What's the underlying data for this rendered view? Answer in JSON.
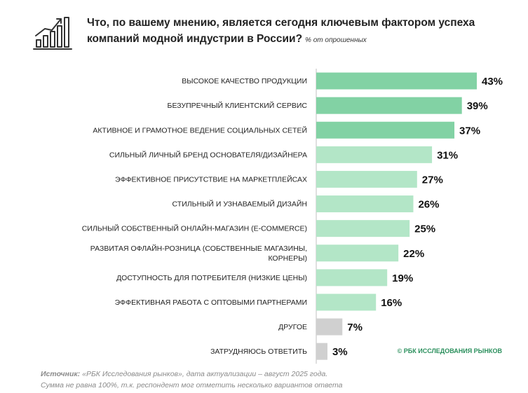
{
  "header": {
    "title": "Что, по вашему мнению, является сегодня ключевым фактором успеха компаний модной индустрии в России?",
    "subtitle": "% от опрошенных",
    "icon": "growth-chart-icon"
  },
  "chart_data": {
    "type": "bar",
    "orientation": "horizontal",
    "categories": [
      "ВЫСОКОЕ КАЧЕСТВО ПРОДУКЦИИ",
      "БЕЗУПРЕЧНЫЙ КЛИЕНТСКИЙ СЕРВИС",
      "АКТИВНОЕ И ГРАМОТНОЕ ВЕДЕНИЕ СОЦИАЛЬНЫХ СЕТЕЙ",
      "СИЛЬНЫЙ ЛИЧНЫЙ БРЕНД ОСНОВАТЕЛЯ/ДИЗАЙНЕРА",
      "ЭФФЕКТИВНОЕ ПРИСУТСТВИЕ НА МАРКЕТПЛЕЙСАХ",
      "СТИЛЬНЫЙ И УЗНАВАЕМЫЙ ДИЗАЙН",
      "СИЛЬНЫЙ СОБСТВЕННЫЙ ОНЛАЙН-МАГАЗИН (E-COMMERCE)",
      "РАЗВИТАЯ ОФЛАЙН-РОЗНИЦА (СОБСТВЕННЫЕ МАГАЗИНЫ,|КОРНЕРЫ)",
      "ДОСТУПНОСТЬ ДЛЯ ПОТРЕБИТЕЛЯ (НИЗКИЕ ЦЕНЫ)",
      "ЭФФЕКТИВНАЯ РАБОТА С ОПТОВЫМИ ПАРТНЕРАМИ",
      "ДРУГОЕ",
      "ЗАТРУДНЯЮСЬ ОТВЕТИТЬ"
    ],
    "values": [
      43,
      39,
      37,
      31,
      27,
      26,
      25,
      22,
      19,
      16,
      7,
      3
    ],
    "value_labels": [
      "43%",
      "39%",
      "37%",
      "31%",
      "27%",
      "26%",
      "25%",
      "22%",
      "19%",
      "16%",
      "7%",
      "3%"
    ],
    "tiers": [
      "top",
      "top",
      "top",
      "mid",
      "mid",
      "mid",
      "mid",
      "mid",
      "mid",
      "mid",
      "other",
      "other"
    ],
    "xlim": [
      0,
      43
    ],
    "unit": "%",
    "colors": {
      "top": "#82d2a4",
      "mid": "#b3e6c7",
      "other": "#d0d0d0",
      "axis": "#bfbfbf"
    }
  },
  "credit": "© РБК ИССЛЕДОВАНИЯ РЫНКОВ",
  "footer": {
    "source_label": "Источник:",
    "source_text": " «РБК Исследования рынков», дата актуализации – август 2025 года.",
    "note": "Сумма не равна 100%, т.к. респондент мог отметить несколько вариантов ответа"
  }
}
